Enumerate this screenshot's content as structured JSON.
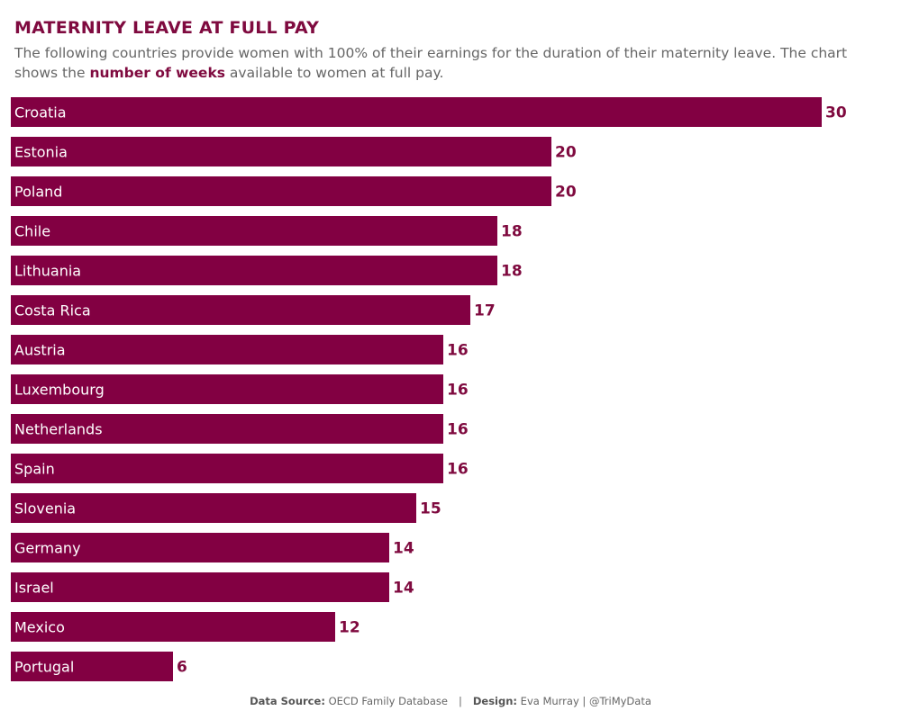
{
  "header": {
    "title": "MATERNITY LEAVE AT FULL PAY",
    "subtitle_part1": "The following countries provide women with 100% of their earnings for the duration of their maternity leave. The chart shows the ",
    "subtitle_emphasis": "number of weeks",
    "subtitle_part2": " available to women at full pay."
  },
  "colors": {
    "bar": "#820042",
    "value_text": "#7f0a3f",
    "bar_text": "#ffffff"
  },
  "chart_data": {
    "type": "bar",
    "orientation": "horizontal",
    "title": "MATERNITY LEAVE AT FULL PAY",
    "xlabel": "",
    "ylabel": "",
    "unit": "weeks",
    "categories": [
      "Croatia",
      "Estonia",
      "Poland",
      "Chile",
      "Lithuania",
      "Costa Rica",
      "Austria",
      "Luxembourg",
      "Netherlands",
      "Spain",
      "Slovenia",
      "Germany",
      "Israel",
      "Mexico",
      "Portugal"
    ],
    "values": [
      30,
      20,
      20,
      18,
      18,
      17,
      16,
      16,
      16,
      16,
      15,
      14,
      14,
      12,
      6
    ],
    "xlim": [
      0,
      30
    ]
  },
  "footer": {
    "source_label": "Data Source",
    "source_value": "OECD Family Database",
    "separator": "|",
    "design_label": "Design",
    "design_value": "Eva Murray | @TriMyData"
  }
}
